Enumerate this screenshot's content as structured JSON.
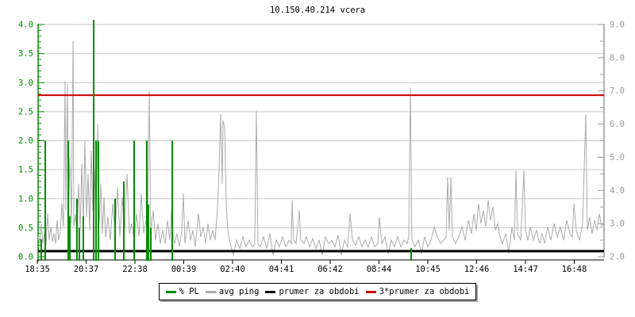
{
  "title": "10.150.40.214 vcera",
  "chart_data": {
    "type": "line",
    "title": "10.150.40.214 vcera",
    "x_unit": "px",
    "x_axis": {
      "tick_labels": [
        "18:35",
        "20:37",
        "22:38",
        "00:39",
        "02:40",
        "04:41",
        "06:42",
        "08:44",
        "10:45",
        "12:46",
        "14:47",
        "16:48"
      ]
    },
    "y_left": {
      "name": "% PL",
      "min": 0,
      "max": 4,
      "tick_step": 0.5,
      "minor_step": 0.1,
      "tick_labels": [
        "0.0",
        "0.5",
        "1.0",
        "1.5",
        "2.0",
        "2.5",
        "3.0",
        "3.5",
        "4.0"
      ],
      "color": "#008C00"
    },
    "y_right": {
      "name": "avg ping",
      "min": 2,
      "max": 9,
      "tick_step": 1,
      "minor_step": 0.5,
      "tick_labels": [
        "2.0",
        "3.0",
        "4.0",
        "5.0",
        "6.0",
        "7.0",
        "8.0",
        "9.0"
      ],
      "color": "#999999"
    },
    "grid": {
      "horizontal_step_left": 0.5,
      "color": "#C8C8C8",
      "vertical": false
    },
    "legend": [
      {
        "label": "% PL",
        "color": "#008C00"
      },
      {
        "label": "avg ping",
        "color": "#ABABAB"
      },
      {
        "label": "prumer za obdobi",
        "color": "#000000"
      },
      {
        "label": "3*prumer za obdobi",
        "color": "#CC0000"
      }
    ],
    "series": [
      {
        "name": "% PL",
        "kind": "vbars",
        "axis": "left",
        "color": "#008C00",
        "points": [
          [
            52,
            0.3
          ],
          [
            57,
            2.0
          ],
          [
            86,
            2.0
          ],
          [
            88,
            0.7
          ],
          [
            97,
            1.0
          ],
          [
            100,
            0.5
          ],
          [
            105,
            0.7
          ],
          [
            118,
            4.1
          ],
          [
            121,
            2.0
          ],
          [
            124,
            2.0
          ],
          [
            145,
            1.0
          ],
          [
            156,
            1.3
          ],
          [
            169,
            2.0
          ],
          [
            185,
            2.0
          ],
          [
            187,
            0.9
          ],
          [
            190,
            0.5
          ],
          [
            217,
            2.0
          ],
          [
            518,
            0.15
          ]
        ]
      },
      {
        "name": "avg ping",
        "kind": "line",
        "axis": "right",
        "color": "#ABABAB",
        "points": [
          [
            48,
            2.6
          ],
          [
            50,
            2.4
          ],
          [
            52,
            3.0
          ],
          [
            54,
            2.4
          ],
          [
            56,
            2.7
          ],
          [
            58,
            2.35
          ],
          [
            60,
            3.3
          ],
          [
            62,
            2.5
          ],
          [
            64,
            2.9
          ],
          [
            66,
            2.45
          ],
          [
            68,
            2.7
          ],
          [
            70,
            2.4
          ],
          [
            72,
            3.1
          ],
          [
            74,
            2.5
          ],
          [
            76,
            2.8
          ],
          [
            78,
            3.6
          ],
          [
            80,
            2.9
          ],
          [
            82,
            7.3
          ],
          [
            83,
            3.4
          ],
          [
            85,
            7.2
          ],
          [
            86,
            3.1
          ],
          [
            88,
            5.0
          ],
          [
            90,
            3.0
          ],
          [
            92,
            8.5
          ],
          [
            93,
            2.9
          ],
          [
            95,
            3.3
          ],
          [
            97,
            2.6
          ],
          [
            99,
            4.2
          ],
          [
            101,
            2.8
          ],
          [
            103,
            4.8
          ],
          [
            105,
            3.0
          ],
          [
            107,
            5.5
          ],
          [
            109,
            3.2
          ],
          [
            111,
            4.5
          ],
          [
            113,
            2.8
          ],
          [
            115,
            5.2
          ],
          [
            117,
            3.4
          ],
          [
            119,
            4.6
          ],
          [
            121,
            2.9
          ],
          [
            123,
            6.0
          ],
          [
            125,
            3.0
          ],
          [
            127,
            4.2
          ],
          [
            129,
            2.7
          ],
          [
            131,
            3.8
          ],
          [
            133,
            2.6
          ],
          [
            136,
            3.2
          ],
          [
            139,
            2.5
          ],
          [
            142,
            3.6
          ],
          [
            145,
            2.7
          ],
          [
            148,
            4.1
          ],
          [
            151,
            2.6
          ],
          [
            154,
            3.8
          ],
          [
            157,
            2.8
          ],
          [
            160,
            4.5
          ],
          [
            163,
            2.7
          ],
          [
            166,
            3.0
          ],
          [
            169,
            2.5
          ],
          [
            172,
            3.3
          ],
          [
            175,
            2.6
          ],
          [
            178,
            3.9
          ],
          [
            181,
            2.7
          ],
          [
            184,
            3.1
          ],
          [
            186,
            2.6
          ],
          [
            188,
            7.0
          ],
          [
            190,
            2.8
          ],
          [
            193,
            3.4
          ],
          [
            196,
            2.5
          ],
          [
            199,
            3.0
          ],
          [
            202,
            2.4
          ],
          [
            205,
            2.8
          ],
          [
            208,
            2.4
          ],
          [
            211,
            3.1
          ],
          [
            214,
            2.5
          ],
          [
            216,
            3.4
          ],
          [
            218,
            2.6
          ],
          [
            220,
            2.4
          ],
          [
            223,
            2.7
          ],
          [
            226,
            2.3
          ],
          [
            229,
            2.8
          ],
          [
            231,
            3.9
          ],
          [
            233,
            2.4
          ],
          [
            237,
            3.1
          ],
          [
            240,
            2.5
          ],
          [
            243,
            2.8
          ],
          [
            246,
            2.3
          ],
          [
            250,
            3.3
          ],
          [
            253,
            2.6
          ],
          [
            256,
            2.9
          ],
          [
            259,
            2.4
          ],
          [
            262,
            3.0
          ],
          [
            265,
            2.5
          ],
          [
            268,
            2.8
          ],
          [
            271,
            2.5
          ],
          [
            274,
            3.5
          ],
          [
            276,
            4.6
          ],
          [
            278,
            6.3
          ],
          [
            280,
            4.2
          ],
          [
            281,
            6.1
          ],
          [
            283,
            5.9
          ],
          [
            285,
            3.6
          ],
          [
            287,
            2.8
          ],
          [
            290,
            2.4
          ],
          [
            294,
            2.05
          ],
          [
            298,
            2.5
          ],
          [
            302,
            2.25
          ],
          [
            306,
            2.6
          ],
          [
            310,
            2.3
          ],
          [
            314,
            2.5
          ],
          [
            318,
            2.3
          ],
          [
            321,
            2.4
          ],
          [
            323,
            6.4
          ],
          [
            325,
            2.4
          ],
          [
            328,
            2.3
          ],
          [
            332,
            2.6
          ],
          [
            336,
            2.25
          ],
          [
            340,
            2.7
          ],
          [
            344,
            2.05
          ],
          [
            348,
            2.5
          ],
          [
            352,
            2.3
          ],
          [
            356,
            2.6
          ],
          [
            360,
            2.3
          ],
          [
            364,
            2.5
          ],
          [
            367,
            2.4
          ],
          [
            368,
            3.7
          ],
          [
            370,
            2.5
          ],
          [
            373,
            2.4
          ],
          [
            377,
            3.4
          ],
          [
            379,
            2.5
          ],
          [
            383,
            2.4
          ],
          [
            386,
            2.6
          ],
          [
            390,
            2.3
          ],
          [
            394,
            2.55
          ],
          [
            398,
            2.25
          ],
          [
            402,
            2.5
          ],
          [
            406,
            2.05
          ],
          [
            410,
            2.6
          ],
          [
            414,
            2.4
          ],
          [
            418,
            2.5
          ],
          [
            422,
            2.3
          ],
          [
            426,
            2.65
          ],
          [
            430,
            2.05
          ],
          [
            434,
            2.5
          ],
          [
            438,
            2.3
          ],
          [
            441,
            3.3
          ],
          [
            444,
            2.5
          ],
          [
            448,
            2.35
          ],
          [
            452,
            2.6
          ],
          [
            456,
            2.3
          ],
          [
            460,
            2.5
          ],
          [
            464,
            2.3
          ],
          [
            468,
            2.6
          ],
          [
            472,
            2.3
          ],
          [
            476,
            2.4
          ],
          [
            478,
            3.2
          ],
          [
            481,
            2.4
          ],
          [
            485,
            2.6
          ],
          [
            489,
            2.1
          ],
          [
            493,
            2.5
          ],
          [
            497,
            2.3
          ],
          [
            501,
            2.6
          ],
          [
            505,
            2.3
          ],
          [
            509,
            2.5
          ],
          [
            513,
            2.4
          ],
          [
            515,
            2.6
          ],
          [
            517,
            7.1
          ],
          [
            519,
            2.5
          ],
          [
            523,
            2.3
          ],
          [
            527,
            2.5
          ],
          [
            531,
            2.1
          ],
          [
            535,
            2.6
          ],
          [
            539,
            2.3
          ],
          [
            543,
            2.5
          ],
          [
            547,
            2.9
          ],
          [
            551,
            2.6
          ],
          [
            555,
            2.4
          ],
          [
            559,
            2.5
          ],
          [
            562,
            2.6
          ],
          [
            564,
            4.4
          ],
          [
            566,
            2.8
          ],
          [
            568,
            4.4
          ],
          [
            570,
            2.6
          ],
          [
            574,
            2.4
          ],
          [
            578,
            2.6
          ],
          [
            582,
            2.9
          ],
          [
            586,
            2.5
          ],
          [
            590,
            3.1
          ],
          [
            594,
            2.7
          ],
          [
            597,
            3.3
          ],
          [
            600,
            2.8
          ],
          [
            603,
            3.6
          ],
          [
            606,
            3.0
          ],
          [
            609,
            3.4
          ],
          [
            612,
            2.9
          ],
          [
            615,
            3.7
          ],
          [
            618,
            3.1
          ],
          [
            621,
            3.5
          ],
          [
            624,
            2.8
          ],
          [
            627,
            3.0
          ],
          [
            630,
            2.6
          ],
          [
            633,
            2.4
          ],
          [
            637,
            2.7
          ],
          [
            641,
            2.1
          ],
          [
            645,
            2.9
          ],
          [
            648,
            2.5
          ],
          [
            650,
            4.6
          ],
          [
            652,
            2.7
          ],
          [
            656,
            2.5
          ],
          [
            660,
            4.6
          ],
          [
            662,
            2.8
          ],
          [
            665,
            2.5
          ],
          [
            668,
            2.9
          ],
          [
            672,
            2.5
          ],
          [
            676,
            2.8
          ],
          [
            680,
            2.4
          ],
          [
            683,
            2.7
          ],
          [
            686,
            2.4
          ],
          [
            690,
            2.9
          ],
          [
            694,
            2.5
          ],
          [
            698,
            3.0
          ],
          [
            702,
            2.6
          ],
          [
            706,
            2.9
          ],
          [
            710,
            2.5
          ],
          [
            714,
            3.1
          ],
          [
            718,
            2.7
          ],
          [
            721,
            2.6
          ],
          [
            723,
            3.6
          ],
          [
            726,
            2.8
          ],
          [
            730,
            2.5
          ],
          [
            734,
            3.0
          ],
          [
            738,
            6.3
          ],
          [
            740,
            2.8
          ],
          [
            743,
            3.2
          ],
          [
            746,
            2.7
          ],
          [
            749,
            3.1
          ],
          [
            752,
            2.8
          ],
          [
            755,
            3.3
          ],
          [
            758,
            2.9
          ],
          [
            760,
            3.0
          ],
          [
            762,
            2.8
          ]
        ]
      },
      {
        "name": "prumer za obdobi",
        "kind": "hline",
        "axis": "right",
        "color": "#000000",
        "value": 2.17
      },
      {
        "name": "3*prumer za obdobi",
        "kind": "hline",
        "axis": "right",
        "color": "#CC0000",
        "value": 6.87
      }
    ]
  }
}
